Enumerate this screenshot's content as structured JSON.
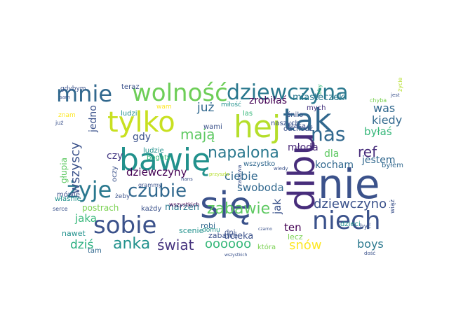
{
  "cloud": {
    "words": [
      {
        "text": "nie",
        "color": "#3b528b"
      },
      {
        "text": "się",
        "color": "#3b528b"
      },
      {
        "text": "bawię",
        "color": "#21918c"
      },
      {
        "text": "hej",
        "color": "#b5de2b"
      },
      {
        "text": "tak",
        "color": "#31688e"
      },
      {
        "text": "tylko",
        "color": "#c8e020"
      },
      {
        "text": "mnie",
        "color": "#31688e"
      },
      {
        "text": "wolność",
        "color": "#6ece58"
      },
      {
        "text": "dziewczyna",
        "color": "#2a788e"
      },
      {
        "text": "niech",
        "color": "#3b528b"
      },
      {
        "text": "sobie",
        "color": "#3b528b"
      },
      {
        "text": "żyje",
        "color": "#2a788e"
      },
      {
        "text": "dibu",
        "color": "#472d7b"
      },
      {
        "text": "czubie",
        "color": "#31688e"
      },
      {
        "text": "zabawie",
        "color": "#5ec962"
      },
      {
        "text": "nas",
        "color": "#31688e"
      },
      {
        "text": "napalona",
        "color": "#2a788e"
      },
      {
        "text": "wszyscy",
        "color": "#3b528b"
      },
      {
        "text": "dziewczyno",
        "color": "#3b528b"
      },
      {
        "text": "anka",
        "color": "#21918c"
      },
      {
        "text": "świat",
        "color": "#46337e"
      },
      {
        "text": "oooooo",
        "color": "#35b779"
      },
      {
        "text": "dziś",
        "color": "#29af7f"
      },
      {
        "text": "snów",
        "color": "#fde725"
      },
      {
        "text": "boys",
        "color": "#2a788e"
      },
      {
        "text": "ref",
        "color": "#472d7b"
      },
      {
        "text": "mają",
        "color": "#5ec962"
      },
      {
        "text": "już",
        "color": "#31688e"
      },
      {
        "text": "zrobiłaś",
        "color": "#440154"
      },
      {
        "text": "miasteczek",
        "color": "#2a788e"
      },
      {
        "text": "was",
        "color": "#31688e"
      },
      {
        "text": "kiedy",
        "color": "#31688e"
      },
      {
        "text": "byłaś",
        "color": "#35b779"
      },
      {
        "text": "młoda",
        "color": "#482878"
      },
      {
        "text": "dla",
        "color": "#5ec962"
      },
      {
        "text": "kocham",
        "color": "#31688e"
      },
      {
        "text": "jestem",
        "color": "#31688e"
      },
      {
        "text": "ciebie",
        "color": "#31688e"
      },
      {
        "text": "swoboda",
        "color": "#31688e"
      },
      {
        "text": "dziewczyny",
        "color": "#440154"
      },
      {
        "text": "gdy",
        "color": "#3b528b"
      },
      {
        "text": "jedno",
        "color": "#3b528b"
      },
      {
        "text": "czy",
        "color": "#443983"
      },
      {
        "text": "głupia",
        "color": "#5ec962"
      },
      {
        "text": "jaka",
        "color": "#35b779"
      },
      {
        "text": "marzeń",
        "color": "#2a788e"
      },
      {
        "text": "jak",
        "color": "#3b528b"
      },
      {
        "text": "ten",
        "color": "#440154"
      },
      {
        "text": "ucieka",
        "color": "#3b528b"
      },
      {
        "text": "postrach",
        "color": "#7ad151"
      },
      {
        "text": "robi",
        "color": "#31688e"
      },
      {
        "text": "scenie",
        "color": "#21918c"
      },
      {
        "text": "nawet",
        "color": "#21918c"
      },
      {
        "text": "dni",
        "color": "#3b528b"
      },
      {
        "text": "która",
        "color": "#7ad151"
      },
      {
        "text": "każdy",
        "color": "#3b528b"
      },
      {
        "text": "lecz",
        "color": "#7ad151"
      },
      {
        "text": "dzieci",
        "color": "#21918c"
      },
      {
        "text": "tam",
        "color": "#31688e"
      },
      {
        "text": "las",
        "color": "#35b779"
      },
      {
        "text": "mych",
        "color": "#46337e"
      },
      {
        "text": "naszych",
        "color": "#3b528b"
      },
      {
        "text": "odchodź",
        "color": "#3b528b"
      },
      {
        "text": "wami",
        "color": "#3b528b"
      },
      {
        "text": "ludzie",
        "color": "#21918c"
      },
      {
        "text": "ludzi",
        "color": "#21918c"
      },
      {
        "text": "wszystko",
        "color": "#31688e"
      },
      {
        "text": "byłem",
        "color": "#31688e"
      },
      {
        "text": "zabawę",
        "color": "#3b528b"
      },
      {
        "text": "zabawa",
        "color": "#3b528b"
      },
      {
        "text": "bogaty",
        "color": "#35b779"
      },
      {
        "text": "teraz",
        "color": "#3b528b"
      },
      {
        "text": "gdybym",
        "color": "#3b528b"
      },
      {
        "text": "aby",
        "color": "#35b779"
      },
      {
        "text": "wam",
        "color": "#fde725"
      },
      {
        "text": "miłość",
        "color": "#21918c"
      },
      {
        "text": "śnilo",
        "color": "#3b528b"
      },
      {
        "text": "klasa",
        "color": "#3b528b"
      },
      {
        "text": "chyba",
        "color": "#7ad151"
      },
      {
        "text": "życie",
        "color": "#b5de2b"
      },
      {
        "text": "oczy",
        "color": "#3b528b"
      },
      {
        "text": "żeby",
        "color": "#3b528b"
      },
      {
        "text": "mówię",
        "color": "#3b528b"
      },
      {
        "text": "właśnie",
        "color": "#21918c"
      },
      {
        "text": "być",
        "color": "#3b528b"
      },
      {
        "text": "wiąż",
        "color": "#3b528b"
      },
      {
        "text": "znam",
        "color": "#fde725"
      },
      {
        "text": "serce",
        "color": "#3b528b"
      },
      {
        "text": "domu",
        "color": "#21918c"
      },
      {
        "text": "wszystkich",
        "color": "#440154"
      },
      {
        "text": "przyszła",
        "color": "#b5de2b"
      },
      {
        "text": "wiedy",
        "color": "#3b528b"
      },
      {
        "text": "hans",
        "color": "#3b528b"
      },
      {
        "text": "grammy",
        "color": "#3b528b"
      },
      {
        "text": "czarno",
        "color": "#3b528b"
      },
      {
        "text": "dość",
        "color": "#3b528b"
      },
      {
        "text": "sam",
        "color": "#3b528b"
      },
      {
        "text": "już",
        "color": "#3b528b"
      },
      {
        "text": "wszystkich",
        "color": "#3b528b"
      },
      {
        "text": "jest",
        "color": "#3b528b"
      }
    ]
  }
}
